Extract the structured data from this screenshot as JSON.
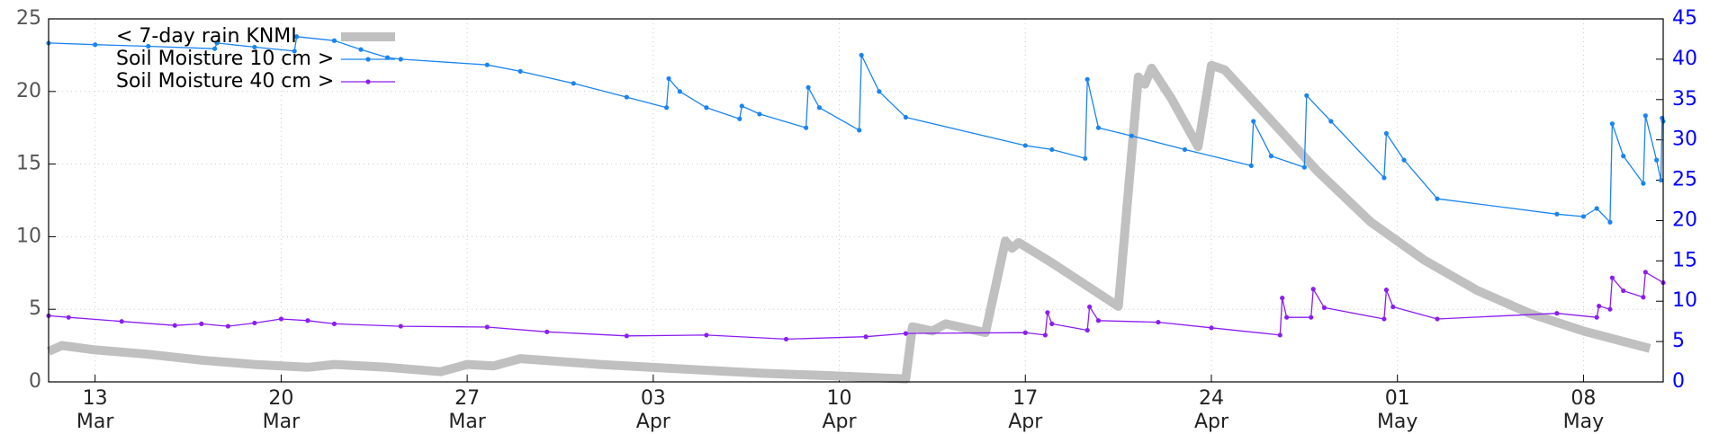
{
  "chart_data": {
    "type": "line",
    "legend": "top left",
    "grid": true,
    "xlim": [
      "03-11 06:00",
      "05-11 00:00"
    ],
    "xticks": [
      {
        "value": "03-13",
        "label": "13\nMar"
      },
      {
        "value": "03-20",
        "label": "20\nMar"
      },
      {
        "value": "03-27",
        "label": "27\nMar"
      },
      {
        "value": "04-03",
        "label": "03\nApr"
      },
      {
        "value": "04-10",
        "label": "10\nApr"
      },
      {
        "value": "04-17",
        "label": "17\nApr"
      },
      {
        "value": "04-24",
        "label": "24\nApr"
      },
      {
        "value": "05-01",
        "label": "01\nMay"
      },
      {
        "value": "05-08",
        "label": "08\nMay"
      }
    ],
    "ylim": [
      0,
      25
    ],
    "yticks": [
      0,
      5,
      10,
      15,
      20,
      25
    ],
    "y2lim": [
      0,
      45
    ],
    "y2ticks": [
      0,
      5,
      10,
      15,
      20,
      25,
      30,
      35,
      40,
      45
    ],
    "series": [
      {
        "name": "< 7-day rain KNMI",
        "color": "#c0c0c0",
        "axis": "y",
        "x": [
          "03-11 06:00",
          "03-11 18:00",
          "03-13",
          "03-15",
          "03-17",
          "03-19",
          "03-21",
          "03-22",
          "03-24",
          "03-26",
          "03-27",
          "03-28",
          "03-29",
          "04-01",
          "04-04",
          "04-07",
          "04-10",
          "04-12 12:00",
          "04-12 18:00",
          "04-13 12:00",
          "04-14",
          "04-15 12:00",
          "04-16 06:00",
          "04-16 12:00",
          "04-16 18:00",
          "04-18",
          "04-20 12:00",
          "04-21 06:00",
          "04-21 12:00",
          "04-21 18:00",
          "04-22 12:00",
          "04-23 12:00",
          "04-24 00:00",
          "04-24 12:00",
          "04-26",
          "04-28",
          "04-30",
          "05-02",
          "05-04",
          "05-06",
          "05-08",
          "05-10 12:00"
        ],
        "values": [
          2.1,
          2.5,
          2.2,
          1.9,
          1.5,
          1.2,
          1.0,
          1.2,
          1.0,
          0.7,
          1.2,
          1.1,
          1.6,
          1.2,
          0.9,
          0.6,
          0.4,
          0.2,
          3.8,
          3.5,
          4.0,
          3.4,
          9.7,
          9.2,
          9.6,
          8.2,
          5.2,
          21.0,
          20.5,
          21.6,
          19.5,
          16.2,
          21.8,
          21.5,
          18.5,
          14.5,
          11.0,
          8.4,
          6.3,
          4.7,
          3.5,
          2.3
        ]
      },
      {
        "name": "Soil Moisture 10 cm >",
        "color": "#1a84f0",
        "axis": "y2",
        "x": [
          "03-11 06:00",
          "03-13",
          "03-15",
          "03-17 12:00",
          "03-17 14:00",
          "03-19",
          "03-20 12:00",
          "03-20 14:00",
          "03-22",
          "03-23",
          "03-24",
          "03-24 12:00",
          "03-27 18:00",
          "03-29",
          "03-31",
          "04-02",
          "04-03 12:00",
          "04-03 14:00",
          "04-04",
          "04-05",
          "04-06 06:00",
          "04-06 08:00",
          "04-07",
          "04-08 18:00",
          "04-08 20:00",
          "04-09 06:00",
          "04-10 18:00",
          "04-10 20:00",
          "04-11 12:00",
          "04-12 12:00",
          "04-17 00:00",
          "04-18",
          "04-19 06:00",
          "04-19 08:00",
          "04-19 18:00",
          "04-21",
          "04-23",
          "04-25 12:00",
          "04-25 14:00",
          "04-26 06:00",
          "04-27 12:00",
          "04-27 14:00",
          "04-28 12:00",
          "04-30 12:00",
          "04-30 14:00",
          "05-01 06:00",
          "05-02 12:00",
          "05-07 00:00",
          "05-08",
          "05-08 12:00",
          "05-09 00:00",
          "05-09 02:00",
          "05-09 12:00",
          "05-10 06:00",
          "05-10 08:00",
          "05-10 18:00",
          "05-10 22:00",
          "05-10 23:00",
          "05-11 00:00"
        ],
        "values": [
          42.0,
          41.8,
          41.6,
          41.3,
          42.0,
          41.5,
          41.0,
          42.8,
          42.3,
          41.2,
          40.2,
          40.0,
          39.3,
          38.5,
          37.0,
          35.3,
          34.0,
          37.6,
          36.0,
          34.0,
          32.6,
          34.2,
          33.2,
          31.5,
          36.5,
          34.0,
          31.2,
          40.5,
          36.0,
          32.8,
          29.3,
          28.8,
          27.7,
          37.5,
          31.5,
          30.5,
          28.8,
          26.8,
          32.3,
          28.0,
          26.6,
          35.5,
          32.3,
          25.3,
          30.8,
          27.5,
          22.7,
          20.8,
          20.5,
          21.5,
          19.8,
          32.0,
          28.0,
          24.6,
          33.0,
          27.5,
          25.0,
          32.7,
          32.3
        ]
      },
      {
        "name": "Soil Moisture 40 cm >",
        "color": "#8a1ef0",
        "axis": "y2",
        "x": [
          "03-11 06:00",
          "03-12",
          "03-14",
          "03-16",
          "03-17",
          "03-18",
          "03-19",
          "03-20",
          "03-21",
          "03-22",
          "03-24 12:00",
          "03-27 18:00",
          "03-30",
          "04-02",
          "04-05",
          "04-08",
          "04-11",
          "04-12 12:00",
          "04-17 00:00",
          "04-17 18:00",
          "04-17 20:00",
          "04-18",
          "04-19 08:00",
          "04-19 10:00",
          "04-19 18:00",
          "04-22",
          "04-24",
          "04-26 14:00",
          "04-26 16:00",
          "04-26 20:00",
          "04-27 18:00",
          "04-27 20:00",
          "04-28 06:00",
          "04-30 12:00",
          "04-30 14:00",
          "04-30 20:00",
          "05-02 12:00",
          "05-07 00:00",
          "05-08 12:00",
          "05-08 14:00",
          "05-09 00:00",
          "05-09 02:00",
          "05-09 12:00",
          "05-10 06:00",
          "05-10 08:00",
          "05-11 00:00"
        ],
        "values": [
          8.2,
          8.0,
          7.5,
          7.0,
          7.2,
          6.9,
          7.3,
          7.8,
          7.6,
          7.2,
          6.9,
          6.8,
          6.2,
          5.7,
          5.8,
          5.3,
          5.6,
          6.0,
          6.1,
          5.8,
          8.6,
          7.2,
          6.4,
          9.3,
          7.6,
          7.4,
          6.7,
          5.8,
          10.4,
          8.0,
          8.0,
          11.5,
          9.2,
          7.8,
          11.4,
          9.3,
          7.8,
          8.5,
          8.0,
          9.4,
          9.0,
          12.9,
          11.3,
          10.5,
          13.6,
          12.3
        ]
      }
    ]
  }
}
